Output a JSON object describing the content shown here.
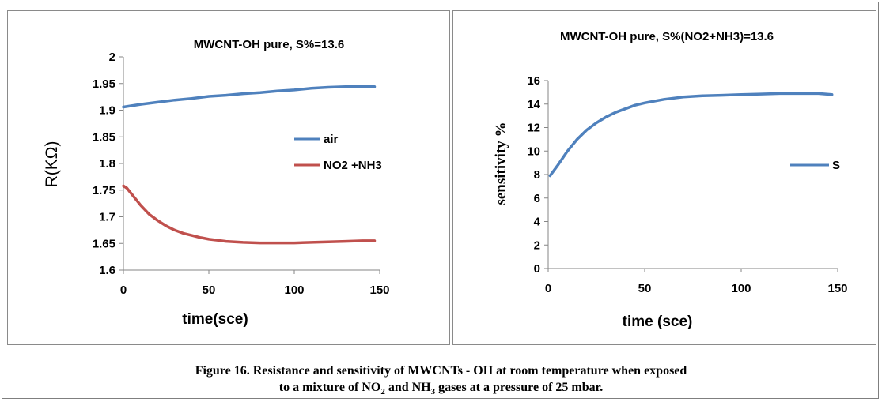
{
  "chart_data": [
    {
      "type": "line",
      "title": "MWCNT-OH pure, S%=13.6",
      "xlabel": "time(sce)",
      "ylabel": "R(KΩ)",
      "xlim": [
        0,
        150
      ],
      "ylim": [
        1.6,
        2.0
      ],
      "xticks": [
        "0",
        "50",
        "100",
        "150"
      ],
      "yticks": [
        "1.6",
        "1.65",
        "1.7",
        "1.75",
        "1.8",
        "1.85",
        "1.9",
        "1.95",
        "2"
      ],
      "grid": false,
      "legend_position": "right",
      "series": [
        {
          "name": "air",
          "color": "#4f81bd",
          "x": [
            0,
            10,
            20,
            30,
            40,
            50,
            60,
            70,
            80,
            90,
            100,
            110,
            120,
            130,
            140,
            147
          ],
          "values": [
            1.906,
            1.911,
            1.915,
            1.919,
            1.922,
            1.926,
            1.928,
            1.931,
            1.933,
            1.936,
            1.938,
            1.941,
            1.943,
            1.944,
            1.944,
            1.944
          ]
        },
        {
          "name": "NO2 +NH3",
          "color": "#c0504d",
          "x": [
            0,
            2,
            5,
            10,
            15,
            20,
            25,
            30,
            35,
            40,
            45,
            50,
            55,
            60,
            70,
            80,
            90,
            100,
            110,
            120,
            130,
            140,
            147
          ],
          "values": [
            1.758,
            1.754,
            1.742,
            1.722,
            1.705,
            1.693,
            1.683,
            1.675,
            1.669,
            1.665,
            1.661,
            1.658,
            1.656,
            1.654,
            1.652,
            1.651,
            1.651,
            1.651,
            1.652,
            1.653,
            1.654,
            1.655,
            1.655
          ]
        }
      ]
    },
    {
      "type": "line",
      "title": "MWCNT-OH pure, S%(NO2+NH3)=13.6",
      "xlabel": "time (sce)",
      "ylabel": "sensitivity %",
      "xlim": [
        0,
        150
      ],
      "ylim": [
        0,
        16
      ],
      "xticks": [
        "0",
        "50",
        "100",
        "150"
      ],
      "yticks": [
        "0",
        "2",
        "4",
        "6",
        "8",
        "10",
        "12",
        "14",
        "16"
      ],
      "grid": false,
      "legend_position": "right",
      "series": [
        {
          "name": "S",
          "color": "#4f81bd",
          "x": [
            1,
            5,
            10,
            15,
            20,
            25,
            30,
            35,
            40,
            45,
            50,
            60,
            70,
            80,
            90,
            100,
            110,
            120,
            130,
            140,
            147
          ],
          "values": [
            7.9,
            8.8,
            10.0,
            11.0,
            11.8,
            12.4,
            12.9,
            13.3,
            13.6,
            13.9,
            14.1,
            14.4,
            14.6,
            14.7,
            14.75,
            14.8,
            14.85,
            14.9,
            14.9,
            14.9,
            14.8
          ]
        }
      ]
    }
  ],
  "caption": {
    "line1": "Figure 16. Resistance  and sensitivity of MWCNTs - OH at room temperature when exposed",
    "line2_a": "to a mixture of NO",
    "line2_sub1": "2",
    "line2_b": " and NH",
    "line2_sub2": "3",
    "line2_c": " gases at a pressure of 25 mbar."
  }
}
